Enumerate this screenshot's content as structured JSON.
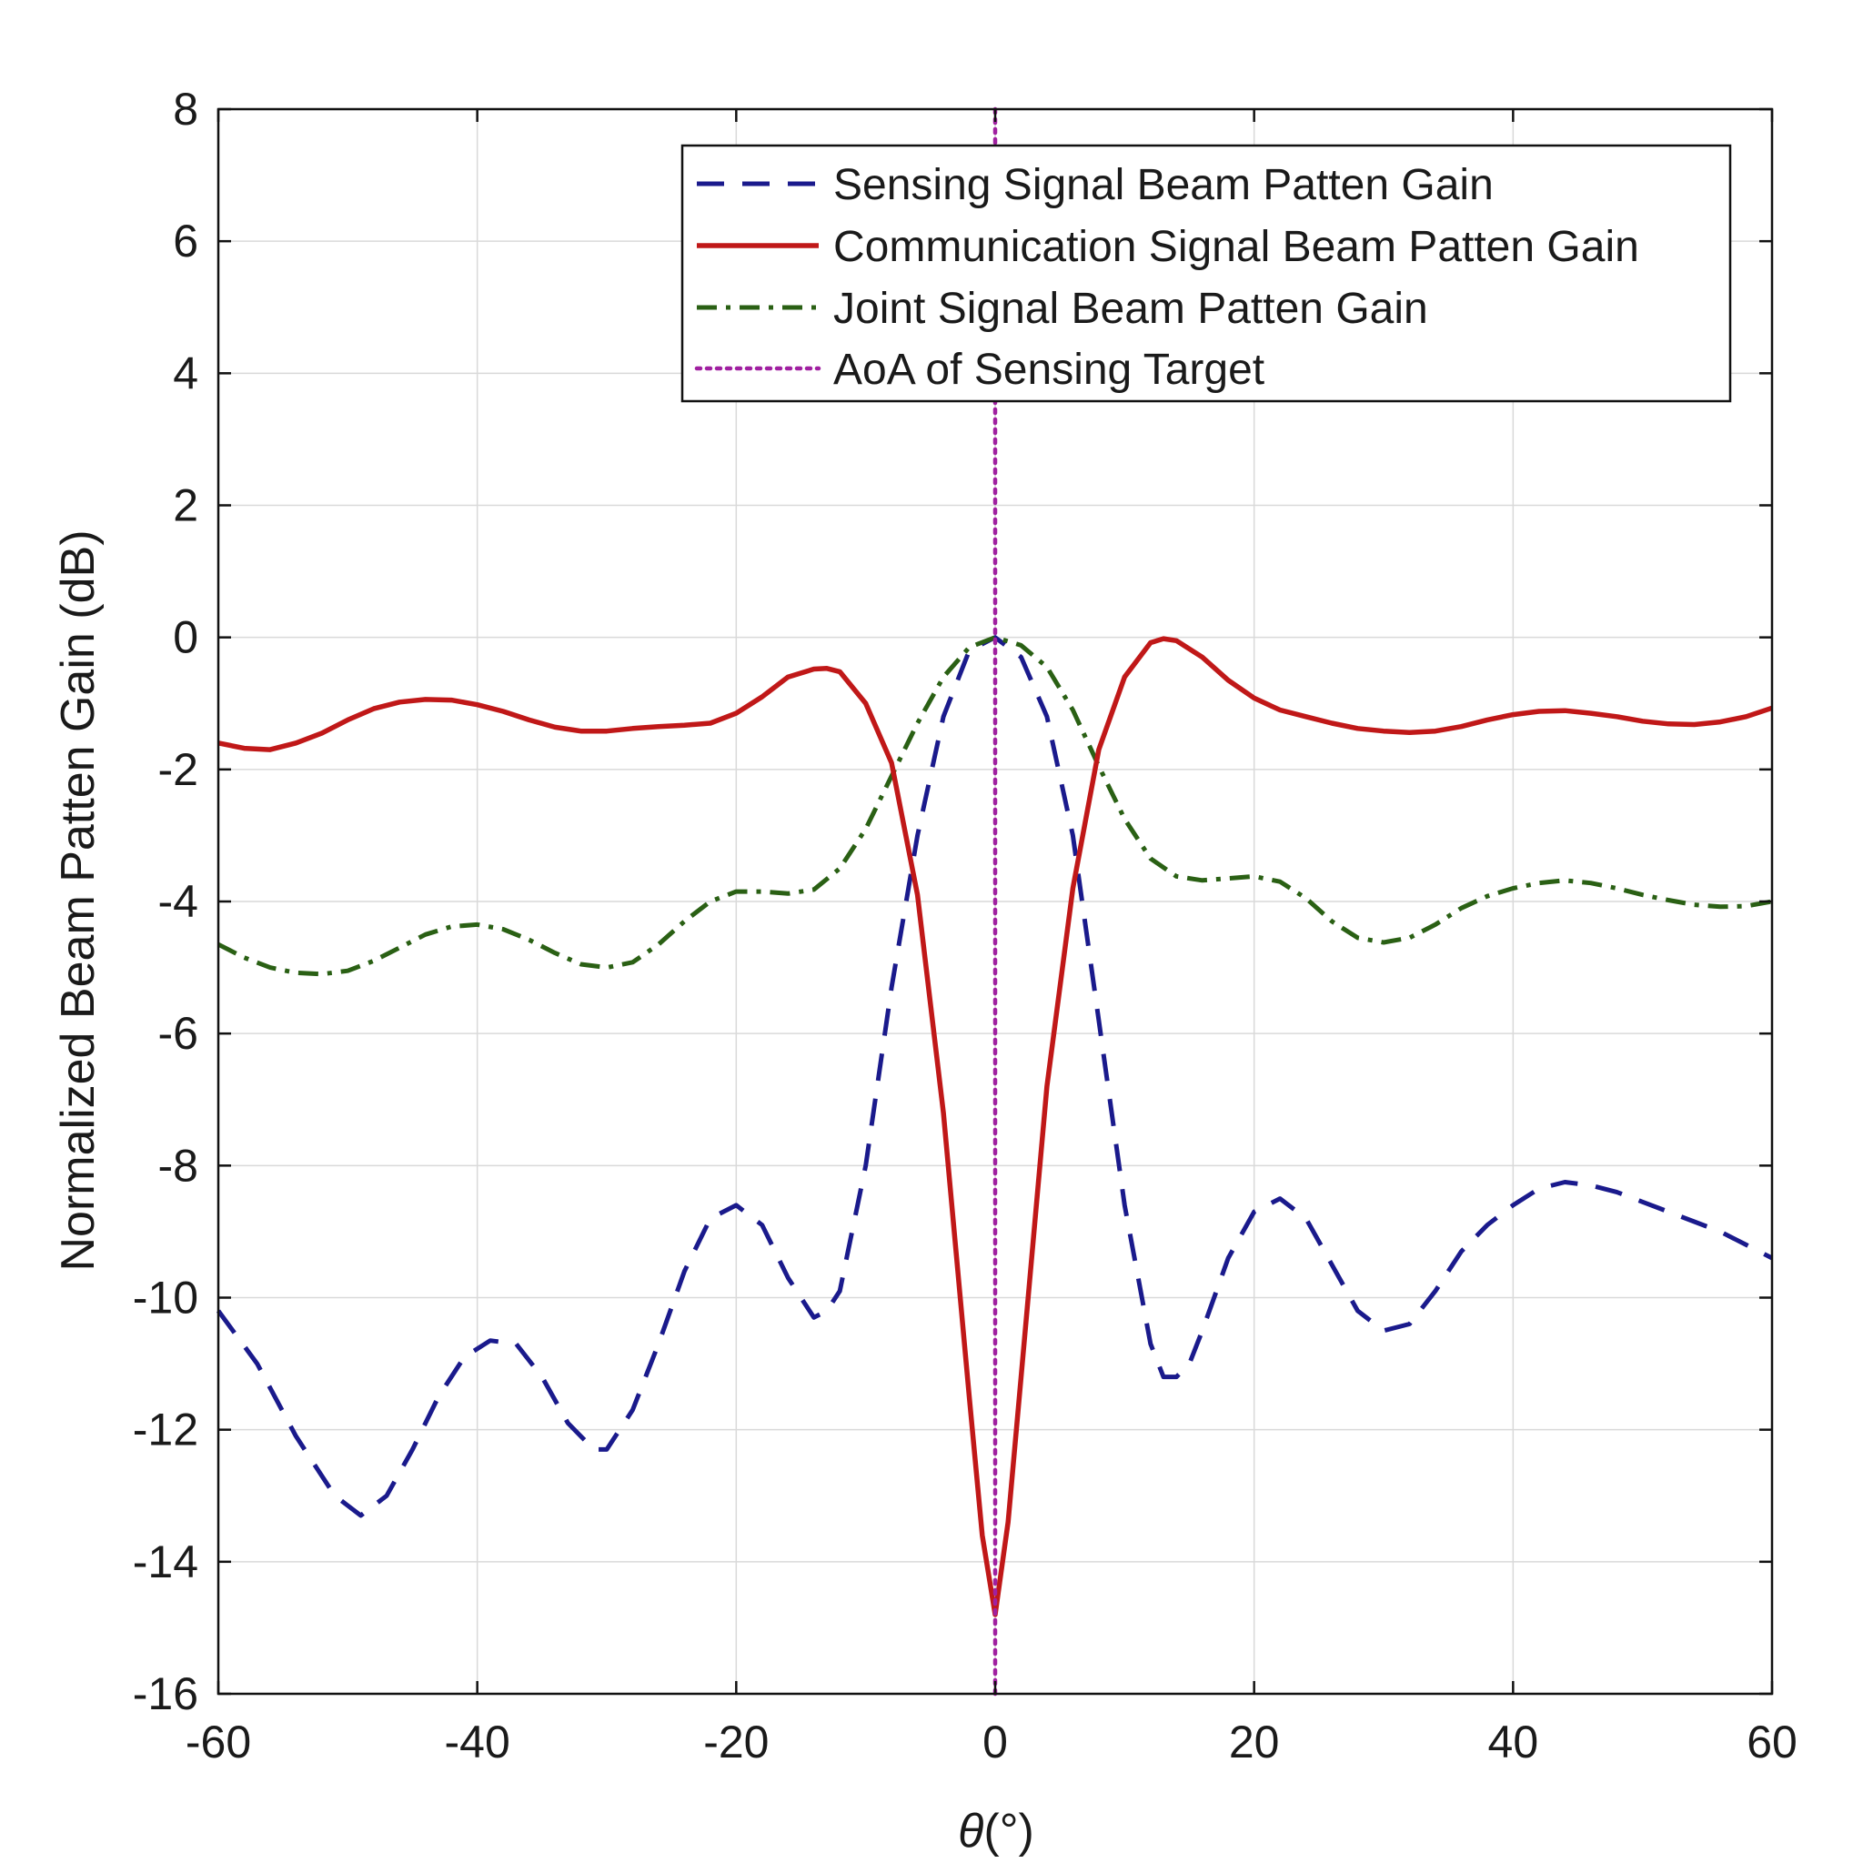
{
  "chart_data": {
    "type": "line",
    "title": "",
    "xlabel_var": "θ",
    "xlabel_unit": "(°)",
    "ylabel": "Normalized Beam Patten Gain (dB)",
    "xlim": [
      -60,
      60
    ],
    "ylim": [
      -16,
      8
    ],
    "xticks": [
      -60,
      -40,
      -20,
      0,
      20,
      40,
      60
    ],
    "yticks": [
      -16,
      -14,
      -12,
      -10,
      -8,
      -6,
      -4,
      -2,
      0,
      2,
      4,
      6,
      8
    ],
    "xtick_labels": [
      "-60",
      "-40",
      "-20",
      "0",
      "20",
      "40",
      "60"
    ],
    "ytick_labels": [
      "-16",
      "-14",
      "-12",
      "-10",
      "-8",
      "-6",
      "-4",
      "-2",
      "0",
      "2",
      "4",
      "6",
      "8"
    ],
    "grid": true,
    "legend_position": "top-right",
    "series": [
      {
        "name": "Sensing Signal Beam Patten Gain",
        "color": "#1a1a8c",
        "style": "dashed",
        "x": [
          -60,
          -57,
          -54,
          -51,
          -49,
          -47,
          -45,
          -43,
          -41,
          -39,
          -37,
          -35,
          -33,
          -31,
          -30,
          -28,
          -26,
          -24,
          -22,
          -20,
          -18,
          -16,
          -14,
          -13,
          -12,
          -10,
          -8,
          -6,
          -4,
          -2,
          0,
          2,
          4,
          6,
          8,
          10,
          12,
          13,
          14,
          15,
          16,
          18,
          20,
          22,
          24,
          26,
          28,
          30,
          32,
          34,
          36,
          38,
          40,
          42,
          44,
          46,
          48,
          50,
          52,
          54,
          56,
          58,
          60
        ],
        "y": [
          -10.2,
          -11.0,
          -12.1,
          -13.0,
          -13.3,
          -13.0,
          -12.3,
          -11.5,
          -10.9,
          -10.65,
          -10.7,
          -11.2,
          -11.9,
          -12.3,
          -12.3,
          -11.7,
          -10.7,
          -9.6,
          -8.8,
          -8.6,
          -8.9,
          -9.7,
          -10.3,
          -10.2,
          -9.9,
          -8.0,
          -5.3,
          -3.0,
          -1.2,
          -0.2,
          0.0,
          -0.3,
          -1.2,
          -3.0,
          -5.8,
          -8.6,
          -10.7,
          -11.2,
          -11.2,
          -11.0,
          -10.5,
          -9.4,
          -8.7,
          -8.5,
          -8.8,
          -9.5,
          -10.2,
          -10.5,
          -10.4,
          -9.9,
          -9.3,
          -8.9,
          -8.6,
          -8.35,
          -8.25,
          -8.3,
          -8.4,
          -8.55,
          -8.7,
          -8.85,
          -9.0,
          -9.2,
          -9.4
        ]
      },
      {
        "name": "Communication Signal Beam Patten Gain",
        "color": "#c01818",
        "style": "solid",
        "x": [
          -60,
          -58,
          -56,
          -54,
          -52,
          -50,
          -48,
          -46,
          -44,
          -42,
          -40,
          -38,
          -36,
          -34,
          -32,
          -30,
          -28,
          -26,
          -24,
          -22,
          -20,
          -18,
          -16,
          -14,
          -13,
          -12,
          -10,
          -8,
          -6,
          -4,
          -2,
          -1,
          0,
          1,
          2,
          4,
          6,
          8,
          10,
          12,
          13,
          14,
          16,
          18,
          20,
          22,
          24,
          26,
          28,
          30,
          32,
          34,
          36,
          38,
          40,
          42,
          44,
          46,
          48,
          50,
          52,
          54,
          56,
          58,
          60
        ],
        "y": [
          -1.6,
          -1.68,
          -1.7,
          -1.6,
          -1.45,
          -1.25,
          -1.08,
          -0.98,
          -0.94,
          -0.95,
          -1.02,
          -1.12,
          -1.25,
          -1.36,
          -1.42,
          -1.42,
          -1.38,
          -1.35,
          -1.33,
          -1.3,
          -1.15,
          -0.9,
          -0.6,
          -0.48,
          -0.47,
          -0.52,
          -1.0,
          -1.9,
          -3.9,
          -7.2,
          -11.5,
          -13.6,
          -14.8,
          -13.4,
          -11.2,
          -6.8,
          -3.8,
          -1.7,
          -0.6,
          -0.08,
          -0.02,
          -0.05,
          -0.3,
          -0.65,
          -0.92,
          -1.1,
          -1.2,
          -1.3,
          -1.38,
          -1.42,
          -1.44,
          -1.42,
          -1.35,
          -1.25,
          -1.17,
          -1.12,
          -1.11,
          -1.15,
          -1.2,
          -1.27,
          -1.31,
          -1.32,
          -1.28,
          -1.2,
          -1.07
        ]
      },
      {
        "name": "Joint Signal Beam Patten Gain",
        "color": "#2a6014",
        "style": "dash-dot",
        "x": [
          -60,
          -58,
          -56,
          -54,
          -52,
          -50,
          -48,
          -46,
          -44,
          -42,
          -40,
          -38,
          -36,
          -34,
          -32,
          -30,
          -28,
          -26,
          -24,
          -22,
          -20,
          -18,
          -16,
          -14,
          -12,
          -10,
          -8,
          -6,
          -4,
          -2,
          0,
          2,
          4,
          6,
          8,
          10,
          12,
          14,
          16,
          18,
          20,
          22,
          24,
          26,
          28,
          30,
          32,
          34,
          36,
          38,
          40,
          42,
          44,
          46,
          48,
          50,
          52,
          54,
          56,
          58,
          60
        ],
        "y": [
          -4.65,
          -4.85,
          -5.0,
          -5.08,
          -5.1,
          -5.05,
          -4.9,
          -4.7,
          -4.5,
          -4.38,
          -4.35,
          -4.42,
          -4.58,
          -4.78,
          -4.95,
          -5.0,
          -4.92,
          -4.65,
          -4.3,
          -4.0,
          -3.85,
          -3.85,
          -3.88,
          -3.82,
          -3.5,
          -2.9,
          -2.1,
          -1.3,
          -0.6,
          -0.15,
          0.0,
          -0.12,
          -0.45,
          -1.1,
          -1.95,
          -2.75,
          -3.35,
          -3.62,
          -3.68,
          -3.65,
          -3.62,
          -3.7,
          -3.95,
          -4.3,
          -4.55,
          -4.62,
          -4.55,
          -4.35,
          -4.1,
          -3.92,
          -3.8,
          -3.72,
          -3.68,
          -3.72,
          -3.8,
          -3.9,
          -3.98,
          -4.05,
          -4.08,
          -4.07,
          -4.0
        ]
      },
      {
        "name": "AoA of Sensing Target",
        "color": "#a020a0",
        "style": "dotted",
        "x": [
          0,
          0
        ],
        "y": [
          -16,
          8
        ]
      }
    ]
  }
}
